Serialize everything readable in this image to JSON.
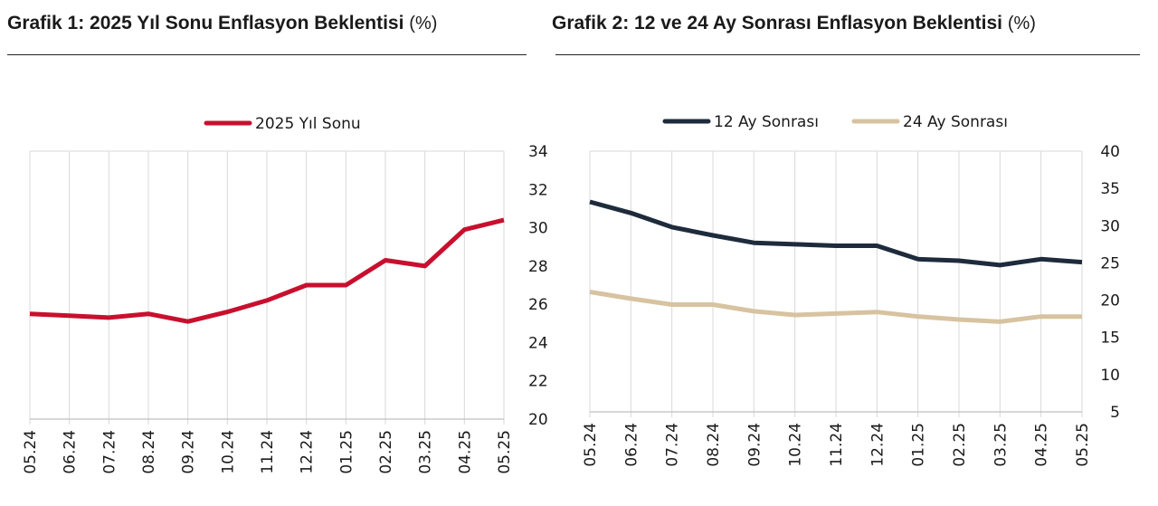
{
  "chart1": {
    "title": "Grafik 1: 2025 Yıl Sonu Enflasyon Beklentisi",
    "unit": "(%)"
  },
  "chart2": {
    "title": "Grafik 2: 12 ve 24 Ay Sonrası Enflasyon Beklentisi",
    "unit": "(%)"
  },
  "chart_data": [
    {
      "type": "line",
      "title": "Grafik 1: 2025 Yıl Sonu Enflasyon Beklentisi (%)",
      "categories": [
        "05.24",
        "06.24",
        "07.24",
        "08.24",
        "09.24",
        "10.24",
        "11.24",
        "12.24",
        "01.25",
        "02.25",
        "03.25",
        "04.25",
        "05.25"
      ],
      "series": [
        {
          "name": "2025 Yıl Sonu",
          "color": "#c8102e",
          "values": [
            25.5,
            25.4,
            25.3,
            25.5,
            25.1,
            25.6,
            26.2,
            27.0,
            27.0,
            28.3,
            28.0,
            29.9,
            30.4
          ]
        }
      ],
      "ylim": [
        20,
        34
      ],
      "yticks": [
        20,
        22,
        24,
        26,
        28,
        30,
        32,
        34
      ],
      "y_axis_side": "right",
      "grid": "vertical",
      "legend": "top-center"
    },
    {
      "type": "line",
      "title": "Grafik 2: 12 ve 24 Ay Sonrası Enflasyon Beklentisi (%)",
      "categories": [
        "05.24",
        "06.24",
        "07.24",
        "08.24",
        "09.24",
        "10.24",
        "11.24",
        "12.24",
        "01.25",
        "02.25",
        "03.25",
        "04.25",
        "05.25"
      ],
      "series": [
        {
          "name": "12 Ay Sonrası",
          "color": "#1e2b3c",
          "values": [
            33.2,
            31.7,
            29.8,
            28.7,
            27.7,
            27.5,
            27.3,
            27.3,
            25.5,
            25.3,
            24.7,
            25.5,
            25.1
          ]
        },
        {
          "name": "24 Ay Sonrası",
          "color": "#d7c3a0",
          "values": [
            21.1,
            20.2,
            19.4,
            19.4,
            18.5,
            18.0,
            18.2,
            18.4,
            17.8,
            17.4,
            17.1,
            17.8,
            17.8
          ]
        }
      ],
      "ylim": [
        5,
        40
      ],
      "yticks": [
        5,
        10,
        15,
        20,
        25,
        30,
        35,
        40
      ],
      "y_axis_side": "right",
      "grid": "vertical",
      "legend": "top-center"
    }
  ]
}
